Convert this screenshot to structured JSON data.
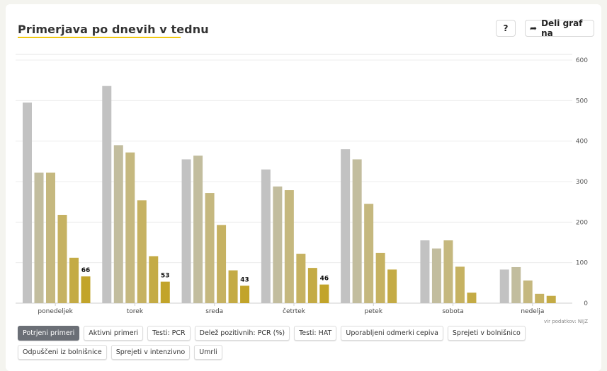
{
  "header": {
    "title": "Primerjava po dnevih v tednu",
    "help_label": "?",
    "share_label": "Deli graf na"
  },
  "icons": {
    "share": "share-arrow-icon"
  },
  "source": "vir podatkov: NIJZ",
  "filters": [
    {
      "label": "Potrjeni primeri",
      "active": true
    },
    {
      "label": "Aktivni primeri",
      "active": false
    },
    {
      "label": "Testi: PCR",
      "active": false
    },
    {
      "label": "Delež pozitivnih: PCR (%)",
      "active": false
    },
    {
      "label": "Testi: HAT",
      "active": false
    },
    {
      "label": "Uporabljeni odmerki cepiva",
      "active": false
    },
    {
      "label": "Sprejeti v bolnišnico",
      "active": false
    },
    {
      "label": "Odpuščeni iz bolnišnice",
      "active": false
    },
    {
      "label": "Sprejeti v intenzivno",
      "active": false
    },
    {
      "label": "Umrli",
      "active": false
    }
  ],
  "chart_data": {
    "type": "bar",
    "categories": [
      "ponedeljek",
      "torek",
      "sreda",
      "četrtek",
      "petek",
      "sobota",
      "nedelja"
    ],
    "ylim": [
      0,
      600
    ],
    "yticks": [
      0,
      100,
      200,
      300,
      400,
      500,
      600
    ],
    "grid": true,
    "colors": [
      "#c2c2c2",
      "#c2bd9e",
      "#c5b87f",
      "#c6b262",
      "#c4ab45",
      "#c2a42a"
    ],
    "groups": [
      {
        "values": [
          495,
          322,
          322,
          218,
          112,
          66
        ],
        "labels": [
          "",
          "",
          "",
          "",
          "",
          "66"
        ]
      },
      {
        "values": [
          536,
          390,
          372,
          254,
          116,
          53
        ],
        "labels": [
          "",
          "",
          "",
          "",
          "",
          "53"
        ]
      },
      {
        "values": [
          355,
          364,
          272,
          193,
          81,
          43
        ],
        "labels": [
          "",
          "",
          "",
          "",
          "",
          "43"
        ]
      },
      {
        "values": [
          330,
          288,
          279,
          122,
          87,
          46
        ],
        "labels": [
          "",
          "",
          "",
          "",
          "",
          "46"
        ]
      },
      {
        "values": [
          380,
          355,
          245,
          124,
          83
        ],
        "labels": [
          "",
          "",
          "",
          "",
          ""
        ]
      },
      {
        "values": [
          155,
          135,
          155,
          90,
          26
        ],
        "labels": [
          "",
          "",
          "",
          "",
          ""
        ]
      },
      {
        "values": [
          83,
          89,
          56,
          23,
          18
        ],
        "labels": [
          "",
          "",
          "",
          "",
          ""
        ]
      }
    ]
  }
}
